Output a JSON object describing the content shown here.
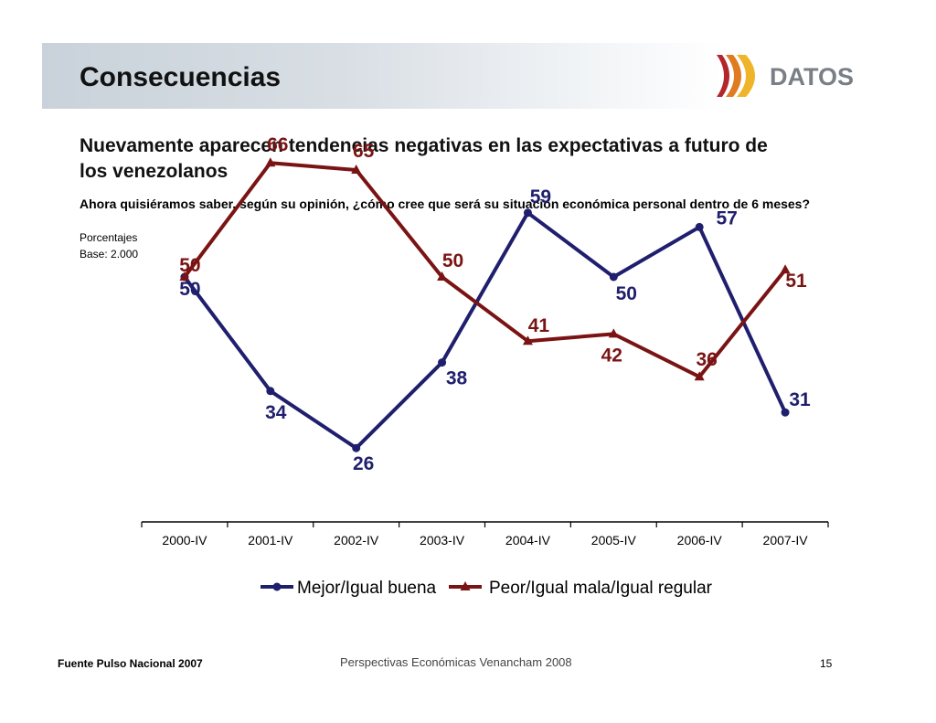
{
  "header": {
    "title": "Consecuencias",
    "logo_text": "DATOS"
  },
  "headline": "Nuevamente aparecen tendencias negativas en  las expectativas a futuro de los venezolanos",
  "question": "Ahora quisiéramos saber, según su opinión, ¿cómo cree que será su situación económica personal dentro de 6 meses?",
  "units": "Porcentajes",
  "base": "Base: 2.000",
  "chart_data": {
    "type": "line",
    "categories": [
      "2000-IV",
      "2001-IV",
      "2002-IV",
      "2003-IV",
      "2004-IV",
      "2005-IV",
      "2006-IV",
      "2007-IV"
    ],
    "series": [
      {
        "name": "Mejor/Igual buena",
        "color": "#1f1f6e",
        "marker": "circle",
        "values": [
          50,
          34,
          26,
          38,
          59,
          50,
          57,
          31
        ]
      },
      {
        "name": "Peor/Igual mala/Igual regular",
        "color": "#7a1414",
        "marker": "triangle",
        "values": [
          50,
          66,
          65,
          50,
          41,
          42,
          36,
          51
        ]
      }
    ],
    "legend": "bottom"
  },
  "footer": {
    "source": "Fuente Pulso Nacional 2007",
    "center": "Perspectivas Económicas Venancham 2008",
    "page": "15"
  }
}
